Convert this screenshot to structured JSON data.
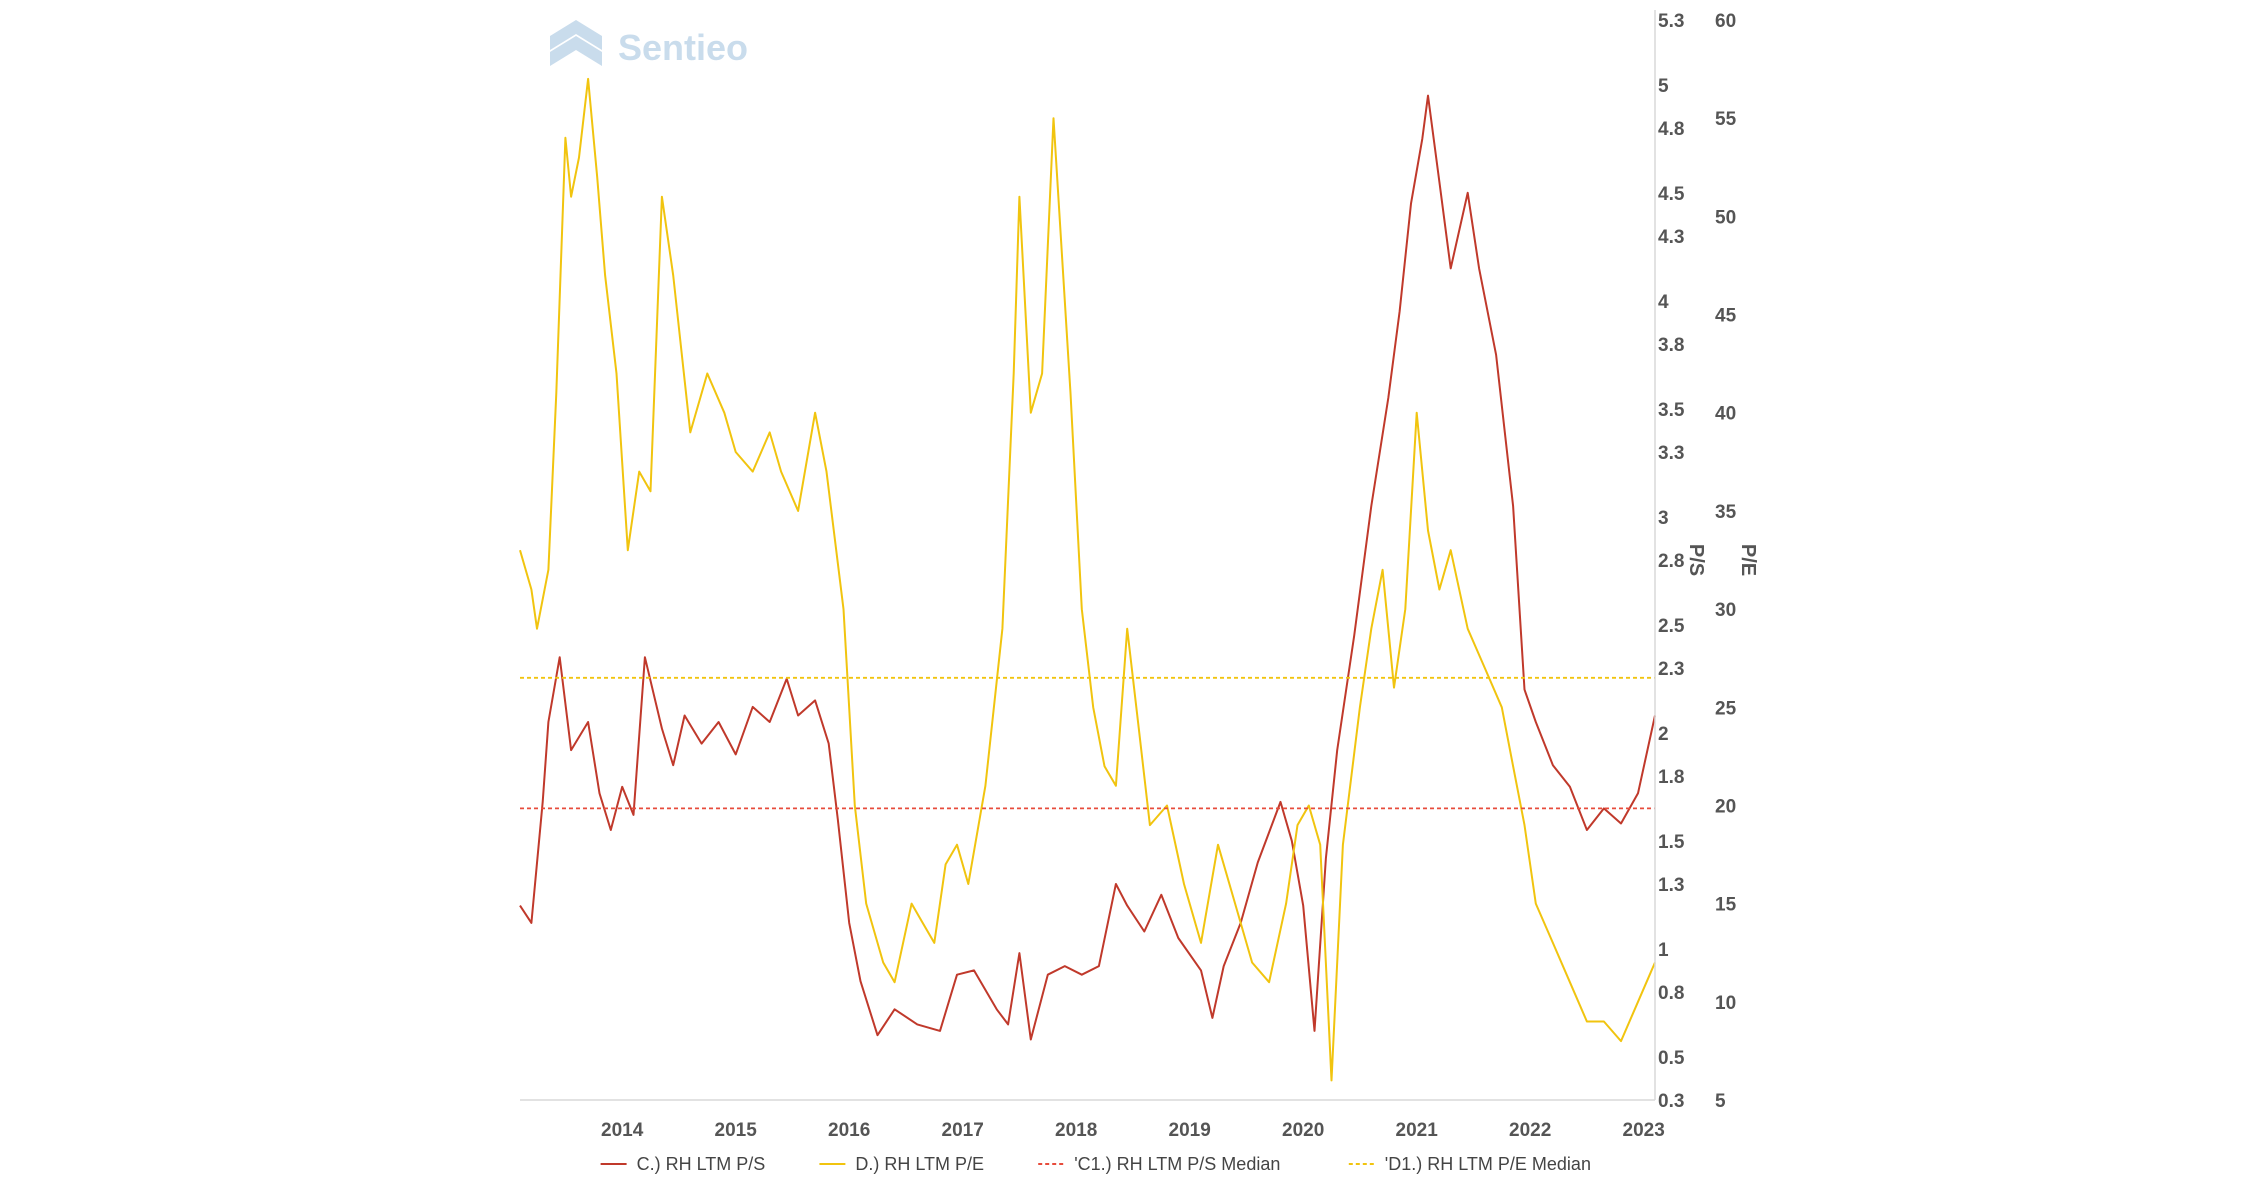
{
  "brand": {
    "logo_text": "Sentieo",
    "logo_color": "#c9dcec"
  },
  "chart_data": {
    "type": "line",
    "x_tick_labels": [
      "2014",
      "2015",
      "2016",
      "2017",
      "2018",
      "2019",
      "2020",
      "2021",
      "2022",
      "2023"
    ],
    "x_range": [
      2013.1,
      2023.1
    ],
    "y_left": {
      "label": "P/S",
      "range": [
        0.3,
        5.3
      ],
      "tick_labels": [
        "0.3",
        "0.5",
        "0.8",
        "1",
        "1.3",
        "1.5",
        "1.8",
        "2",
        "2.3",
        "2.5",
        "2.8",
        "3",
        "3.3",
        "3.5",
        "3.8",
        "4",
        "4.3",
        "4.5",
        "4.8",
        "5",
        "5.3"
      ]
    },
    "y_right": {
      "label": "P/E",
      "range": [
        5,
        60
      ],
      "tick_labels": [
        "5",
        "10",
        "15",
        "20",
        "25",
        "30",
        "35",
        "40",
        "45",
        "50",
        "55",
        "60"
      ]
    },
    "grid": false,
    "legend_position": "bottom",
    "series": [
      {
        "name": "C.) RH LTM P/S",
        "axis": "left",
        "color": "#c0392b",
        "style": "solid",
        "x": [
          2013.1,
          2013.2,
          2013.3,
          2013.35,
          2013.45,
          2013.55,
          2013.7,
          2013.8,
          2013.9,
          2014.0,
          2014.1,
          2014.2,
          2014.35,
          2014.45,
          2014.55,
          2014.7,
          2014.85,
          2015.0,
          2015.15,
          2015.3,
          2015.45,
          2015.55,
          2015.7,
          2015.82,
          2015.9,
          2016.0,
          2016.1,
          2016.25,
          2016.4,
          2016.6,
          2016.8,
          2016.95,
          2017.1,
          2017.3,
          2017.4,
          2017.5,
          2017.6,
          2017.75,
          2017.9,
          2018.05,
          2018.2,
          2018.35,
          2018.45,
          2018.6,
          2018.75,
          2018.9,
          2019.1,
          2019.2,
          2019.3,
          2019.45,
          2019.6,
          2019.8,
          2019.9,
          2020.0,
          2020.1,
          2020.2,
          2020.3,
          2020.45,
          2020.6,
          2020.75,
          2020.85,
          2020.95,
          2021.05,
          2021.1,
          2021.2,
          2021.3,
          2021.45,
          2021.55,
          2021.7,
          2021.85,
          2021.95,
          2022.05,
          2022.2,
          2022.35,
          2022.5,
          2022.65,
          2022.8,
          2022.95,
          2023.1
        ],
        "values": [
          1.2,
          1.12,
          1.68,
          2.05,
          2.35,
          1.92,
          2.05,
          1.72,
          1.55,
          1.75,
          1.62,
          2.35,
          2.02,
          1.85,
          2.08,
          1.95,
          2.05,
          1.9,
          2.12,
          2.05,
          2.25,
          2.08,
          2.15,
          1.95,
          1.6,
          1.12,
          0.85,
          0.6,
          0.72,
          0.65,
          0.62,
          0.88,
          0.9,
          0.72,
          0.65,
          0.98,
          0.58,
          0.88,
          0.92,
          0.88,
          0.92,
          1.3,
          1.2,
          1.08,
          1.25,
          1.05,
          0.9,
          0.68,
          0.92,
          1.12,
          1.4,
          1.68,
          1.5,
          1.2,
          0.62,
          1.42,
          1.92,
          2.45,
          3.05,
          3.55,
          3.95,
          4.45,
          4.75,
          4.95,
          4.55,
          4.15,
          4.5,
          4.15,
          3.75,
          3.05,
          2.2,
          2.05,
          1.85,
          1.75,
          1.55,
          1.65,
          1.58,
          1.72,
          2.08
        ]
      },
      {
        "name": "D.) RH LTM P/E",
        "axis": "right",
        "color": "#f1c40f",
        "style": "solid",
        "x": [
          2013.1,
          2013.2,
          2013.25,
          2013.35,
          2013.42,
          2013.5,
          2013.55,
          2013.62,
          2013.7,
          2013.78,
          2013.85,
          2013.95,
          2014.05,
          2014.15,
          2014.25,
          2014.35,
          2014.45,
          2014.6,
          2014.75,
          2014.9,
          2015.0,
          2015.15,
          2015.3,
          2015.4,
          2015.55,
          2015.7,
          2015.8,
          2015.95,
          2016.05,
          2016.15,
          2016.3,
          2016.4,
          2016.55,
          2016.65,
          2016.75,
          2016.85,
          2016.95,
          2017.05,
          2017.2,
          2017.35,
          2017.45,
          2017.5,
          2017.6,
          2017.7,
          2017.8,
          2017.95,
          2018.05,
          2018.15,
          2018.25,
          2018.35,
          2018.45,
          2018.55,
          2018.65,
          2018.8,
          2018.95,
          2019.1,
          2019.25,
          2019.4,
          2019.55,
          2019.7,
          2019.85,
          2019.95,
          2020.05,
          2020.15,
          2020.25,
          2020.35,
          2020.5,
          2020.6,
          2020.7,
          2020.8,
          2020.9,
          2021.0,
          2021.1,
          2021.2,
          2021.3,
          2021.45,
          2021.6,
          2021.75,
          2021.85,
          2021.95,
          2022.05,
          2022.2,
          2022.35,
          2022.5,
          2022.65,
          2022.8,
          2022.95,
          2023.1
        ],
        "values": [
          33,
          31,
          29,
          32,
          41,
          54,
          51,
          53,
          57,
          52,
          47,
          42,
          33,
          37,
          36,
          51,
          47,
          39,
          42,
          40,
          38,
          37,
          39,
          37,
          35,
          40,
          37,
          30,
          20,
          15,
          12,
          11,
          15,
          14,
          13,
          17,
          18,
          16,
          21,
          29,
          42,
          51,
          40,
          42,
          55,
          41,
          30,
          25,
          22,
          21,
          29,
          24,
          19,
          20,
          16,
          13,
          18,
          15,
          12,
          11,
          15,
          19,
          20,
          18,
          6,
          18,
          25,
          29,
          32,
          26,
          30,
          40,
          34,
          31,
          33,
          29,
          27,
          25,
          22,
          19,
          15,
          13,
          11,
          9,
          9,
          8,
          10,
          12
        ]
      },
      {
        "name": "'C1.) RH LTM P/S Median",
        "axis": "left",
        "color": "#e74c3c",
        "style": "dashed",
        "constant": 1.65
      },
      {
        "name": "'D1.) RH LTM P/E Median",
        "axis": "right",
        "color": "#f1c40f",
        "style": "dashed",
        "constant": 26.5
      }
    ]
  }
}
